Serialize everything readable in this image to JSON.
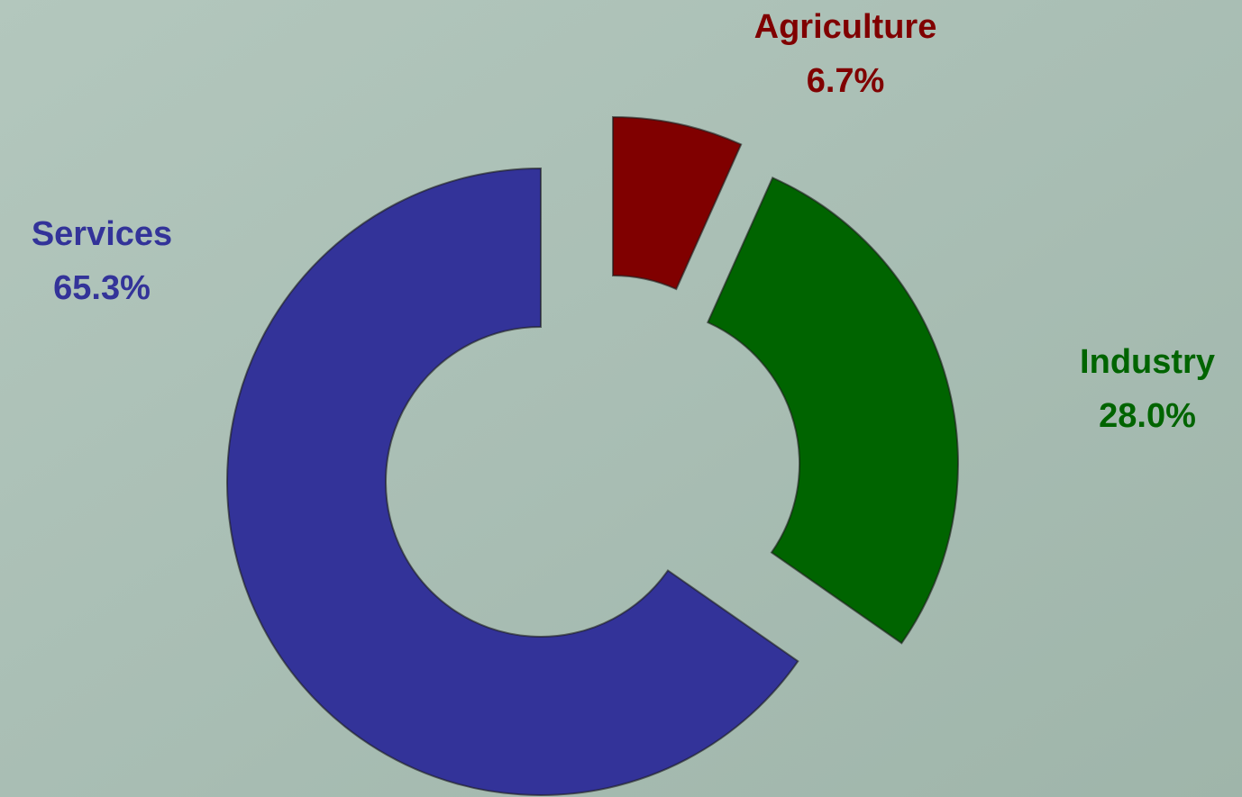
{
  "chart_data": {
    "type": "donut",
    "categories": [
      "Agriculture",
      "Industry",
      "Services"
    ],
    "values": [
      6.7,
      28.0,
      65.3
    ],
    "value_labels": [
      "6.7%",
      "28.0%",
      "65.3%"
    ],
    "colors": [
      "#800000",
      "#006400",
      "#333399"
    ]
  }
}
